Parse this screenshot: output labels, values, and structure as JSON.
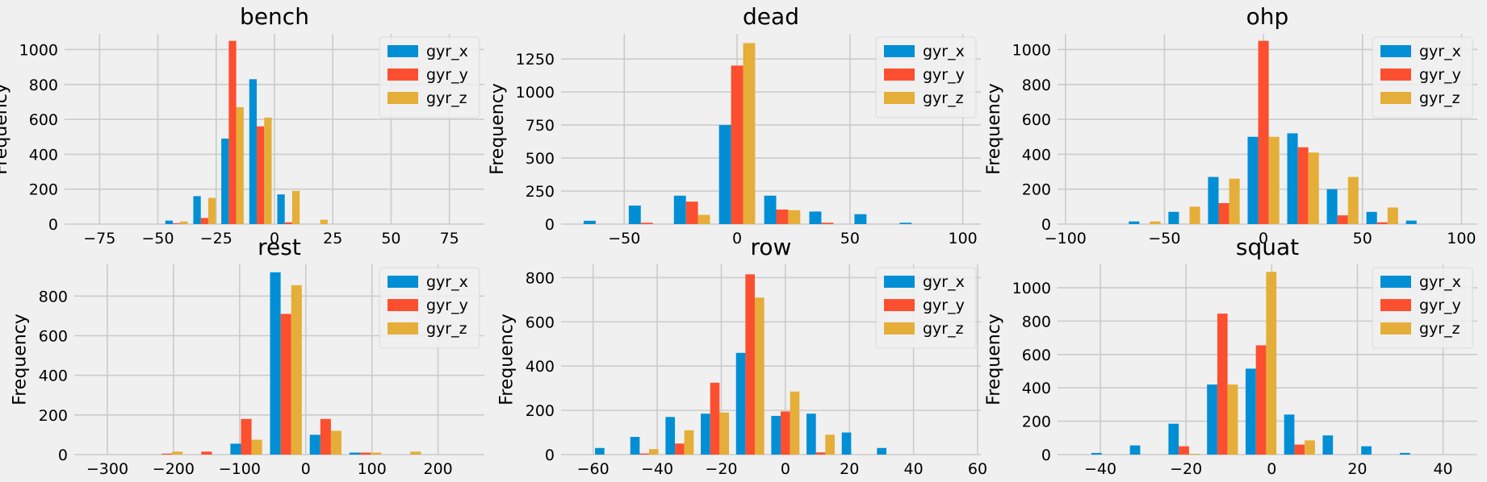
{
  "colors": {
    "gyr_x": "#008fd5",
    "gyr_y": "#fc4f30",
    "gyr_z": "#e5ae38",
    "background": "#f0f0f0",
    "grid": "#cbcbcb"
  },
  "chart_data": [
    {
      "type": "bar",
      "title": "bench",
      "ylabel": "Frequency",
      "legend": "top-right",
      "xlim": [
        -90,
        90
      ],
      "ylim": [
        0,
        1090
      ],
      "xticks": [
        -75,
        -50,
        -25,
        0,
        25,
        50,
        75
      ],
      "yticks": [
        0,
        200,
        400,
        600,
        800,
        1000
      ],
      "bin_width": 12,
      "x": [
        -42,
        -30,
        -18,
        -6,
        6,
        18,
        30,
        42
      ],
      "series": [
        {
          "name": "gyr_x",
          "values": [
            20,
            160,
            490,
            830,
            170,
            0,
            0,
            0
          ]
        },
        {
          "name": "gyr_y",
          "values": [
            5,
            35,
            1050,
            560,
            10,
            0,
            0,
            0
          ]
        },
        {
          "name": "gyr_z",
          "values": [
            15,
            150,
            670,
            610,
            190,
            25,
            0,
            0
          ]
        }
      ]
    },
    {
      "type": "bar",
      "title": "dead",
      "ylabel": "Frequency",
      "legend": "top-right",
      "xlim": [
        -78,
        108
      ],
      "ylim": [
        0,
        1440
      ],
      "xticks": [
        -50,
        0,
        50,
        100
      ],
      "yticks": [
        0,
        250,
        500,
        750,
        1000,
        1250
      ],
      "bin_width": 20,
      "x": [
        -60,
        -40,
        -20,
        0,
        20,
        40,
        60,
        80
      ],
      "series": [
        {
          "name": "gyr_x",
          "values": [
            25,
            140,
            215,
            750,
            215,
            95,
            75,
            10
          ]
        },
        {
          "name": "gyr_y",
          "values": [
            0,
            10,
            170,
            1200,
            110,
            10,
            0,
            0
          ]
        },
        {
          "name": "gyr_z",
          "values": [
            0,
            0,
            70,
            1370,
            105,
            0,
            0,
            0
          ]
        }
      ]
    },
    {
      "type": "bar",
      "title": "ohp",
      "ylabel": "Frequency",
      "legend": "top-right",
      "xlim": [
        -104,
        108
      ],
      "ylim": [
        0,
        1090
      ],
      "xticks": [
        -100,
        -50,
        0,
        50,
        100
      ],
      "yticks": [
        0,
        200,
        400,
        600,
        800,
        1000
      ],
      "bin_width": 20,
      "x": [
        -60,
        -40,
        -20,
        0,
        20,
        40,
        60,
        80
      ],
      "series": [
        {
          "name": "gyr_x",
          "values": [
            15,
            70,
            270,
            500,
            520,
            200,
            70,
            20
          ]
        },
        {
          "name": "gyr_y",
          "values": [
            0,
            0,
            120,
            1050,
            440,
            50,
            10,
            0
          ]
        },
        {
          "name": "gyr_z",
          "values": [
            15,
            100,
            260,
            500,
            410,
            270,
            95,
            0
          ]
        }
      ]
    },
    {
      "type": "bar",
      "title": "rest",
      "ylabel": "Frequency",
      "legend": "top-right",
      "xlim": [
        -350,
        270
      ],
      "ylim": [
        0,
        960
      ],
      "xticks": [
        -300,
        -200,
        -100,
        0,
        100,
        200
      ],
      "yticks": [
        0,
        200,
        400,
        600,
        800
      ],
      "bin_width": 60,
      "x": [
        -270,
        -210,
        -150,
        -90,
        -30,
        30,
        90,
        150
      ],
      "series": [
        {
          "name": "gyr_x",
          "values": [
            0,
            0,
            0,
            55,
            920,
            100,
            10,
            0
          ]
        },
        {
          "name": "gyr_y",
          "values": [
            0,
            5,
            15,
            180,
            710,
            180,
            10,
            0
          ]
        },
        {
          "name": "gyr_z",
          "values": [
            0,
            15,
            0,
            75,
            855,
            120,
            10,
            15
          ]
        }
      ]
    },
    {
      "type": "bar",
      "title": "row",
      "ylabel": "Frequency",
      "legend": "top-right",
      "xlim": [
        -70,
        61
      ],
      "ylim": [
        0,
        860
      ],
      "xticks": [
        -60,
        -40,
        -20,
        0,
        20,
        40,
        60
      ],
      "yticks": [
        0,
        200,
        400,
        600,
        800
      ],
      "bin_width": 11,
      "x": [
        -55,
        -44,
        -33,
        -22,
        -11,
        0,
        11,
        22,
        33,
        44
      ],
      "series": [
        {
          "name": "gyr_x",
          "values": [
            30,
            80,
            170,
            185,
            460,
            175,
            185,
            100,
            30,
            0
          ]
        },
        {
          "name": "gyr_y",
          "values": [
            0,
            5,
            50,
            325,
            815,
            195,
            10,
            0,
            0,
            0
          ]
        },
        {
          "name": "gyr_z",
          "values": [
            0,
            25,
            110,
            190,
            710,
            285,
            90,
            0,
            0,
            0
          ]
        }
      ]
    },
    {
      "type": "bar",
      "title": "squat",
      "ylabel": "Frequency",
      "legend": "top-right",
      "xlim": [
        -50,
        48
      ],
      "ylim": [
        0,
        1140
      ],
      "xticks": [
        -40,
        -20,
        0,
        20,
        40
      ],
      "yticks": [
        0,
        200,
        400,
        600,
        800,
        1000
      ],
      "bin_width": 9,
      "x": [
        -38.5,
        -29.5,
        -20.5,
        -11.5,
        -2.5,
        6.5,
        15.5,
        24.5,
        33.5
      ],
      "series": [
        {
          "name": "gyr_x",
          "values": [
            10,
            55,
            185,
            420,
            515,
            240,
            115,
            50,
            10
          ]
        },
        {
          "name": "gyr_y",
          "values": [
            0,
            0,
            50,
            845,
            655,
            60,
            0,
            0,
            0
          ]
        },
        {
          "name": "gyr_z",
          "values": [
            0,
            0,
            5,
            420,
            1095,
            85,
            0,
            0,
            0
          ]
        }
      ]
    }
  ]
}
